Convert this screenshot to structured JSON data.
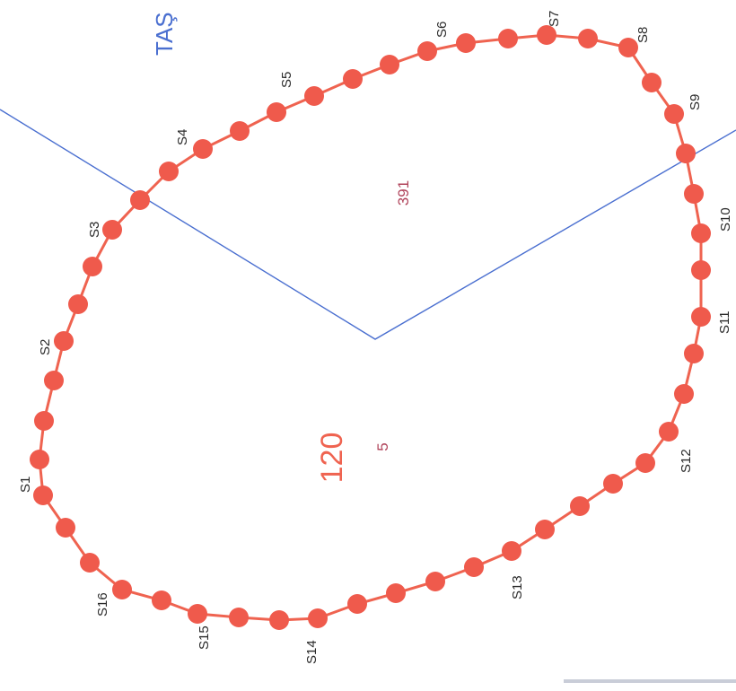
{
  "colors": {
    "boundary": "#ef6350",
    "boundary_point": "#ef5a4c",
    "parcel_line": "#4a6fd0",
    "station_text": "#2a2a2a",
    "parcel_number": "#b0435a",
    "area_number": "#ef6350",
    "place_name": "#4a6fd0"
  },
  "place_name": "TAŞ",
  "parcel_number": "391",
  "area_number": "120",
  "block_number": "5",
  "stations": [
    "S1",
    "S2",
    "S3",
    "S4",
    "S5",
    "S6",
    "S7",
    "S8",
    "S9",
    "S10",
    "S11",
    "S12",
    "S13",
    "S14",
    "S15",
    "S16"
  ]
}
